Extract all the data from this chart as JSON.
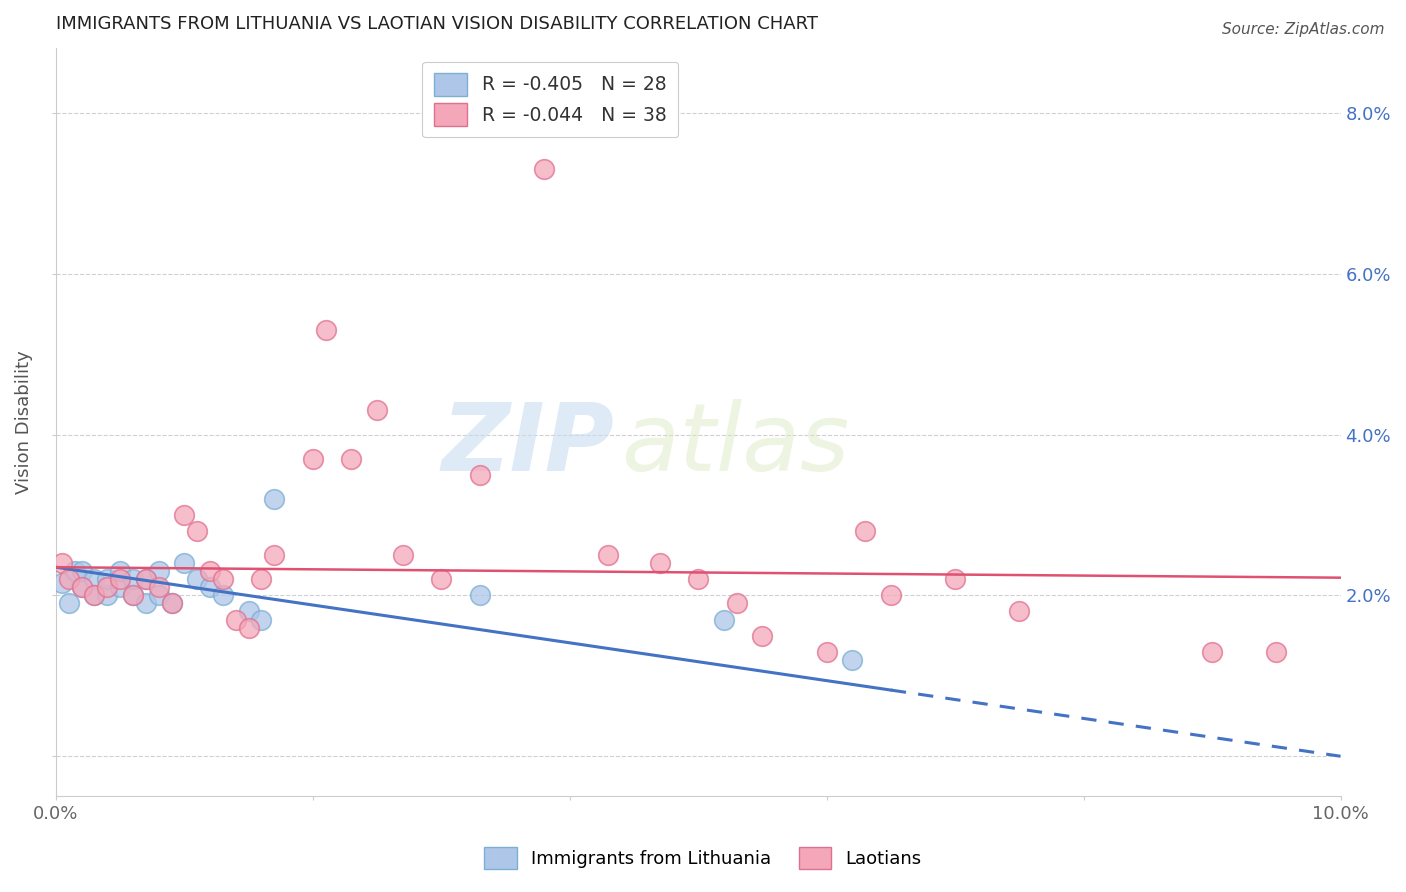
{
  "title": "IMMIGRANTS FROM LITHUANIA VS LAOTIAN VISION DISABILITY CORRELATION CHART",
  "source": "Source: ZipAtlas.com",
  "ylabel": "Vision Disability",
  "xlim": [
    0.0,
    0.1
  ],
  "ylim": [
    -0.005,
    0.088
  ],
  "legend_entries": [
    {
      "label_r": "R = ",
      "r_val": "-0.405",
      "label_n": "   N = ",
      "n_val": "28",
      "color": "#aec6e8",
      "edge": "#7bafd4"
    },
    {
      "label_r": "R = ",
      "r_val": "-0.044",
      "label_n": "   N = ",
      "n_val": "38",
      "color": "#f4a7b9",
      "edge": "#e07090"
    }
  ],
  "scatter_lithuania": {
    "color": "#aec6e8",
    "edge_color": "#7bafd4",
    "x": [
      0.0005,
      0.001,
      0.0015,
      0.002,
      0.002,
      0.003,
      0.003,
      0.004,
      0.004,
      0.005,
      0.005,
      0.006,
      0.006,
      0.007,
      0.007,
      0.008,
      0.008,
      0.009,
      0.01,
      0.011,
      0.012,
      0.013,
      0.015,
      0.016,
      0.017,
      0.033,
      0.052,
      0.062
    ],
    "y": [
      0.0215,
      0.019,
      0.023,
      0.021,
      0.023,
      0.022,
      0.02,
      0.02,
      0.022,
      0.021,
      0.023,
      0.02,
      0.022,
      0.019,
      0.022,
      0.02,
      0.023,
      0.019,
      0.024,
      0.022,
      0.021,
      0.02,
      0.018,
      0.017,
      0.032,
      0.02,
      0.017,
      0.012
    ]
  },
  "scatter_laotian": {
    "color": "#f4a7b9",
    "edge_color": "#e07090",
    "x": [
      0.0005,
      0.001,
      0.002,
      0.003,
      0.004,
      0.005,
      0.006,
      0.007,
      0.008,
      0.009,
      0.01,
      0.011,
      0.012,
      0.013,
      0.014,
      0.015,
      0.016,
      0.017,
      0.02,
      0.021,
      0.023,
      0.025,
      0.027,
      0.03,
      0.033,
      0.038,
      0.043,
      0.047,
      0.05,
      0.053,
      0.055,
      0.06,
      0.063,
      0.065,
      0.07,
      0.075,
      0.09,
      0.095
    ],
    "y": [
      0.024,
      0.022,
      0.021,
      0.02,
      0.021,
      0.022,
      0.02,
      0.022,
      0.021,
      0.019,
      0.03,
      0.028,
      0.023,
      0.022,
      0.017,
      0.016,
      0.022,
      0.025,
      0.037,
      0.053,
      0.037,
      0.043,
      0.025,
      0.022,
      0.035,
      0.073,
      0.025,
      0.024,
      0.022,
      0.019,
      0.015,
      0.013,
      0.028,
      0.02,
      0.022,
      0.018,
      0.013,
      0.013
    ]
  },
  "trendline_lithuania": {
    "color": "#4472c4",
    "slope": -0.235,
    "intercept": 0.0235,
    "solid_end": 0.065,
    "dash_end": 0.1
  },
  "trendline_laotian": {
    "color": "#e05070",
    "slope": -0.013,
    "intercept": 0.0235,
    "x_start": 0.0,
    "x_end": 0.1
  },
  "watermark_zip": "ZIP",
  "watermark_atlas": "atlas",
  "background_color": "#ffffff",
  "grid_color": "#d0d0d0",
  "title_color": "#222222",
  "axis_tick_color": "#4472c4"
}
